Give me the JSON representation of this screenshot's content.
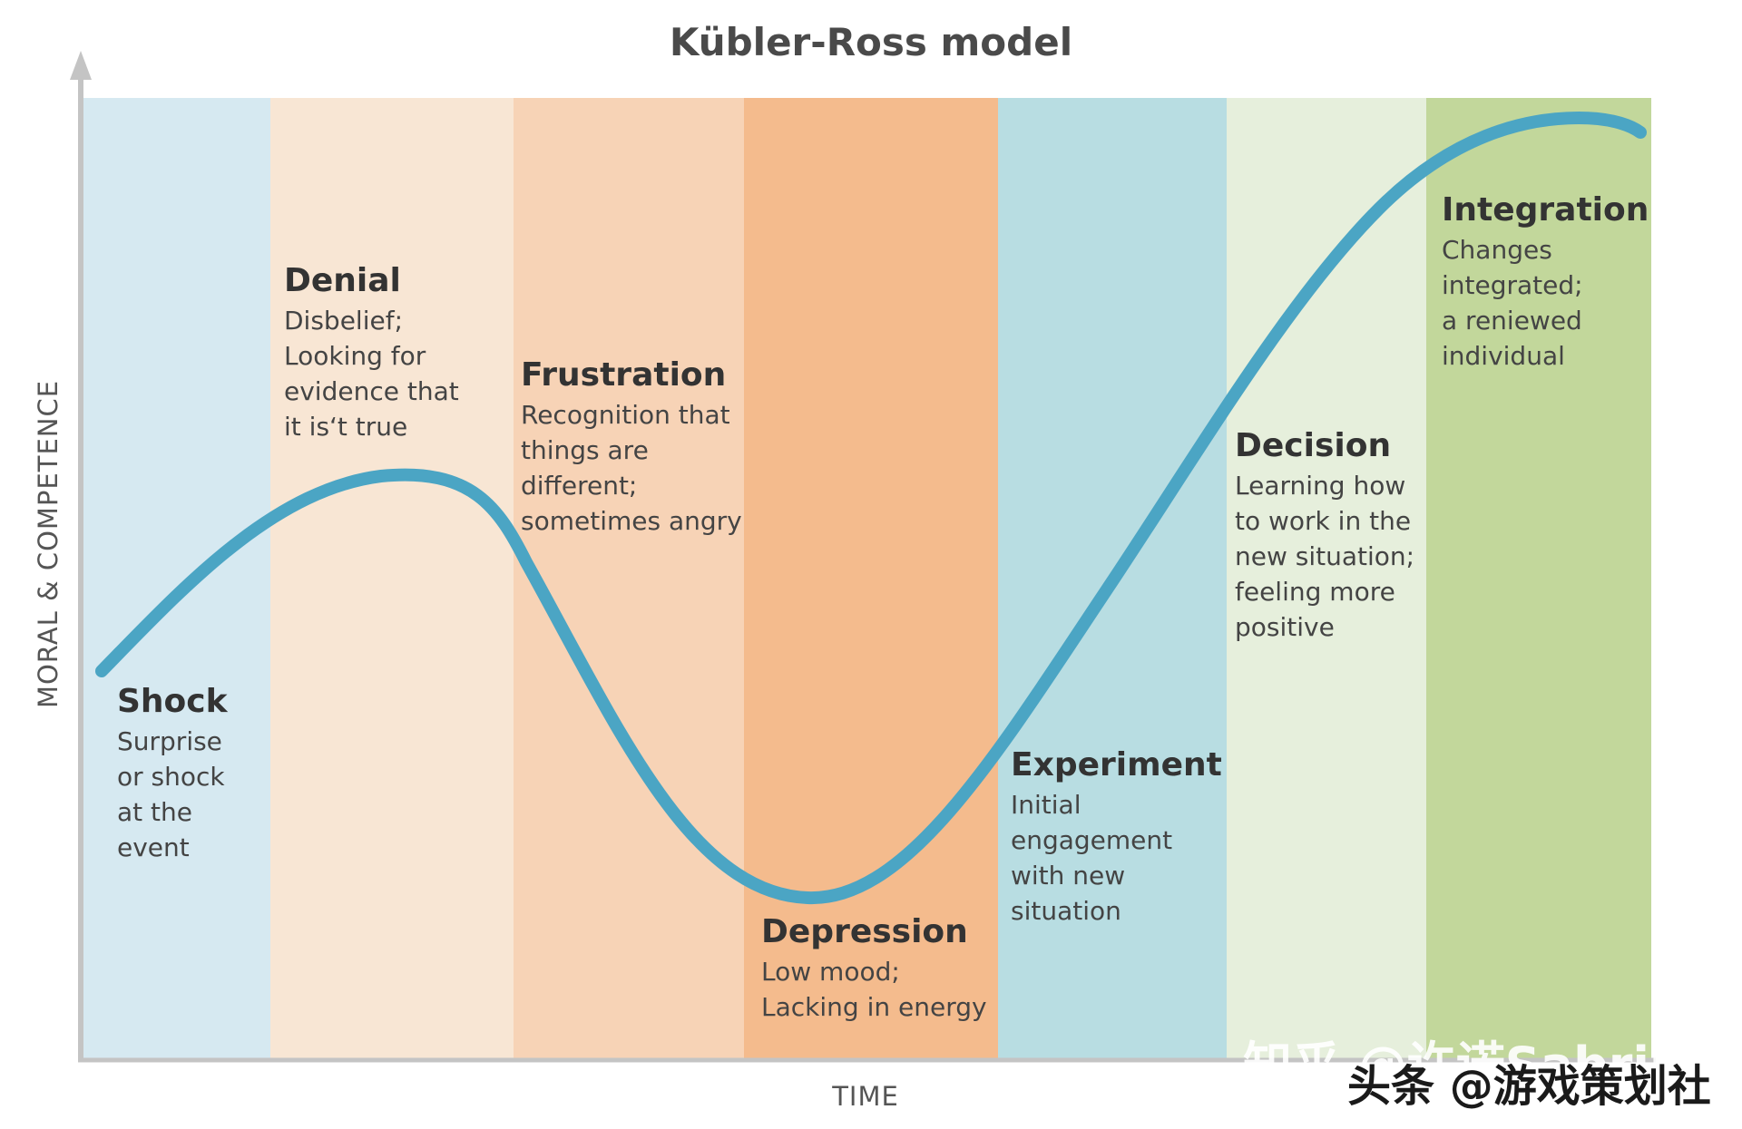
{
  "title": "Kübler-Ross model",
  "x_axis_label": "TIME",
  "y_axis_label": "MORAL & COMPETENCE",
  "stages": [
    {
      "name": "Shock",
      "description": "Surprise\nor shock\nat the\nevent",
      "color": "#d6e9f1"
    },
    {
      "name": "Denial",
      "description": "Disbelief;\nLooking for\nevidence that\nit is‘t true",
      "color": "#f8e6d4"
    },
    {
      "name": "Frustration",
      "description": "Recognition that\nthings are\ndifferent;\nsometimes angry",
      "color": "#f7d3b6"
    },
    {
      "name": "Depression",
      "description": "Low mood;\nLacking in energy",
      "color": "#f4bb8d"
    },
    {
      "name": "Experiment",
      "description": "Initial\nengagement\nwith new\nsituation",
      "color": "#b8dde2"
    },
    {
      "name": "Decision",
      "description": "Learning how\nto work in the\nnew situation;\nfeeling more\npositive",
      "color": "#e6efdc"
    },
    {
      "name": "Integration",
      "description": "Changes\nintegrated;\na reniewed\nindividual",
      "color": "#c2d79b"
    }
  ],
  "curve_color": "#4ba5c4",
  "axis_color": "#c4c4c4",
  "watermarks": {
    "zhihu": "知乎 @许诺Sabrina",
    "toutiao": "头条 @游戏策划社"
  }
}
